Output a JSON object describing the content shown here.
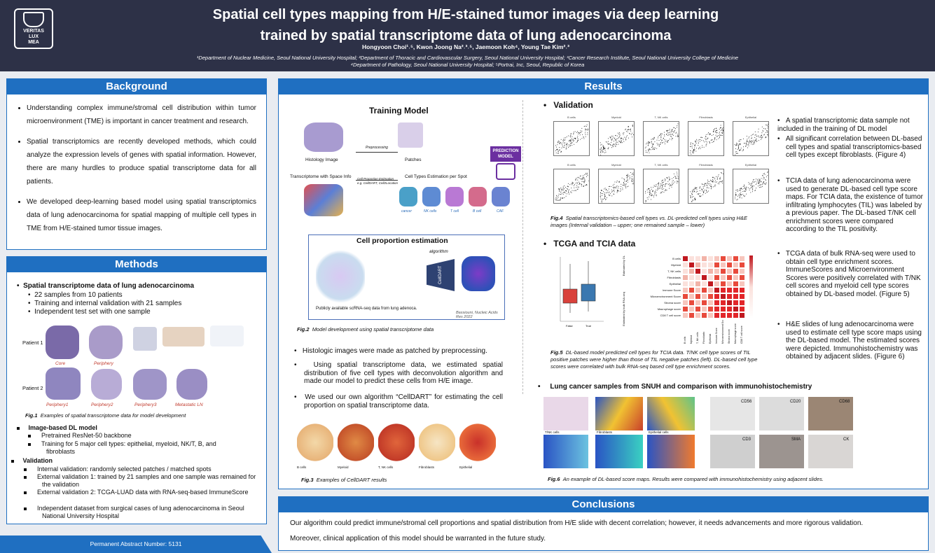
{
  "header": {
    "logo_text": [
      "VERITAS",
      "LUX",
      "MEA"
    ],
    "title_line1": "Spatial cell types mapping from H/E-stained tumor images via deep learning",
    "title_line2": "trained by spatial transcriptome data of lung adenocarcinoma",
    "authors": "Hongyoon Choi¹˒⁵, Kwon Joong Na²˒³˒⁵, Jaemoon Koh⁴, Young Tae Kim²˒³",
    "affil1": "¹Department of Nuclear Medicine, Seoul National University Hospital; ²Department of Thoracic and Cardiovascular Surgery, Seoul National University Hospital; ³Cancer Research Institute, Seoul National University College of Medicine",
    "affil2": "⁴Department of Pathology, Seoul National University Hospital; ⁵Portrai, Inc, Seoul, Republic of Korea"
  },
  "background": {
    "title": "Background",
    "items": [
      "Understanding complex immune/stromal cell distribution within tumor microenvironment (TME) is important in cancer treatment and research.",
      "Spatial transcriptomics are recently developed methods, which could analyze the expression levels of genes with spatial information. However, there are many hurdles to produce spatial transcriptome data for all patients.",
      "We developed deep-learning based model using spatial transcriptomics data of lung adenocarcinoma for spatial mapping of multiple cell types in TME from H/E-stained tumor tissue images."
    ]
  },
  "methods": {
    "title": "Methods",
    "s1_head": "Spatial transcriptome data of lung adenocarcinoma",
    "s1_items": [
      "22 samples from 10 patients",
      "Training and internal validation with 21 samples",
      "Independent test set with one sample"
    ],
    "fig1_patient1": "Patient 1",
    "fig1_patient2": "Patient 2",
    "fig1_labels_row1": [
      "Core",
      "Periphery"
    ],
    "fig1_labels_row2": [
      "Periphery1",
      "Periphery2",
      "Periphery3",
      "Metastatic LN"
    ],
    "fig1_caption_bold": "Fig.1",
    "fig1_caption": "Examples of spatial transcriptome data for model development",
    "s2_head": "Image-based DL model",
    "s2_items": [
      "Pretrained ResNet-50 backbone",
      "Training for 5 major cell types: epithelial, myeloid, NK/T, B, and fibroblasts"
    ],
    "s3_head": "Validation",
    "s3_items": [
      "Internal validation: randomly selected patches / matched spots",
      "External validation 1: trained by 21 samples and one sample was remained for the validation",
      "External validation 2: TCGA-LUAD data with RNA-seq-based ImmuneScore",
      "Independent dataset from surgical cases of lung adenocarcinoma in Seoul National University Hospital"
    ]
  },
  "footer": {
    "text": "Permanent Abstract Number:  5131"
  },
  "results": {
    "title": "Results",
    "training_title": "Training Model",
    "histology_label": "Histology Image",
    "preprocessing_label": "Preprocessing",
    "patches_label": "Patches",
    "transcriptome_label": "Transcriptome with Space Info",
    "cellprop_small": "Cell Proportion Estimation",
    "cellprop_small2": "e.g. CellDART, Cell2Location",
    "celltype_est_label": "Cell Types Estimation per Spot",
    "prediction_model": "PREDICTION MODEL",
    "celltype_small_labels": [
      "cancer",
      "NK cells",
      "T cell",
      "B cell",
      "CAF"
    ],
    "cellprop_title": "Cell proportion estimation",
    "algorithm_label": "algorithm",
    "celldart_label": "CellDART",
    "scrna_label": "Publicly available scRNA-seq data from lung adenoca.",
    "bassiouni_ref": "Bassiouni, Nucleic Acids Res 2022",
    "fig2_bold": "Fig.2",
    "fig2_caption": "Model development using spatial transcriptome data",
    "mid_bullets": [
      "Histologic images were made as patched by preprocessing.",
      "Using spatial transcriptome data, we estimated spatial distribution of five cell types with deconvolution algorithm and made our model to predict these cells from H/E image.",
      "We used our own algorithm “CellDART” for estimating the cell proportion on spatial transcriptome data."
    ],
    "fig3_types": [
      "B cells",
      "Myeloid",
      "T, NK cells",
      "Fibroblasts",
      "Epithelial"
    ],
    "fig3_bold": "Fig.3",
    "fig3_caption": "Examples of CellDART results",
    "validation_head": "Validation",
    "scatter_titles": [
      "B cells",
      "Myeloid",
      "T, NK cells",
      "Fibroblasts",
      "Epithelial"
    ],
    "fig4_bold": "Fig.4",
    "fig4_caption": "Spatial transcriptomics-based cell types vs. DL-predicted cell types using H&E images (Internal validation – upper; one remained sample – lower)",
    "right_text1": [
      "A spatial transcriptomic data sample not included in the training of DL model",
      "All significant correlation between DL-based cell types and spatial transcriptomics-based cell types except fibroblasts. (Figure 4)"
    ],
    "tcga_head": "TCGA and TCIA data",
    "boxplot_labels": [
      "False",
      "True"
    ],
    "heatmap_rows": [
      "B cells",
      "Myeloid",
      "T, NK cells",
      "Fibroblasts",
      "Epithelial",
      "Immune Score",
      "Microenvironment Score",
      "Stroma score",
      "Macrophage score",
      "CD8 T cell score"
    ],
    "heatmap_axis1": "Estimated by DL",
    "heatmap_axis2": "Estimated by bulk RNA-seq",
    "fig5_bold": "Fig.5",
    "fig5_caption": "DL-based model predicted cell types for TCIA data. T/NK cell type scores of TIL positive patches were higher than those of TIL negative patches (left). DL-based cell type scores were correlated with bulk RNA-seq based cell type enrichment scores.",
    "right_text2": "TCIA data of lung adenocarcinoma were used to generate DL-based cell type score maps. For TCIA data, the existence of tumor infiltrating lymphocytes (TIL) was labeled by a previous paper. The DL-based T/NK cell enrichment scores were compared according to the TIL positivity.",
    "right_text3": "TCGA data of bulk RNA-seq were used to obtain cell type enrichment scores. ImmuneScores and Microenvironment Scores were positively correlated with T/NK cell scores and myeloid cell type scores obtained by DL-based model. (Figure 5)",
    "right_text4": "H&E slides of lung adenocarcinoma were used to estimate cell type score maps using the DL-based model. The estimated scores were depicted. Immunohistochemistry was obtained by adjacent slides. (Figure 6)",
    "snuh_head": "Lung cancer samples from SNUH and comparison with immunohistochemistry",
    "ihc_labels": [
      "CD56",
      "CD20",
      "CD68",
      "CD3",
      "SMA",
      "CK"
    ],
    "score_map_labels": [
      "T/NK cells",
      "Fibroblasts",
      "Epithelial cells"
    ],
    "fig6_bold": "Fig.6",
    "fig6_caption": "An example of DL-based score maps. Results were compared with immunohistochemistry using adjacent slides."
  },
  "conclusions": {
    "title": "Conclusions",
    "line1": "Our algorithm could predict immune/stromal cell proportions and spatial distribution from H/E slide with decent correlation; however, it needs advancements and more rigorous validation.",
    "line2": "Moreover, clinical application of this model should be warranted in the future study."
  },
  "colors": {
    "header_bg": "#2d3147",
    "panel_title": "#1f6fc1"
  }
}
